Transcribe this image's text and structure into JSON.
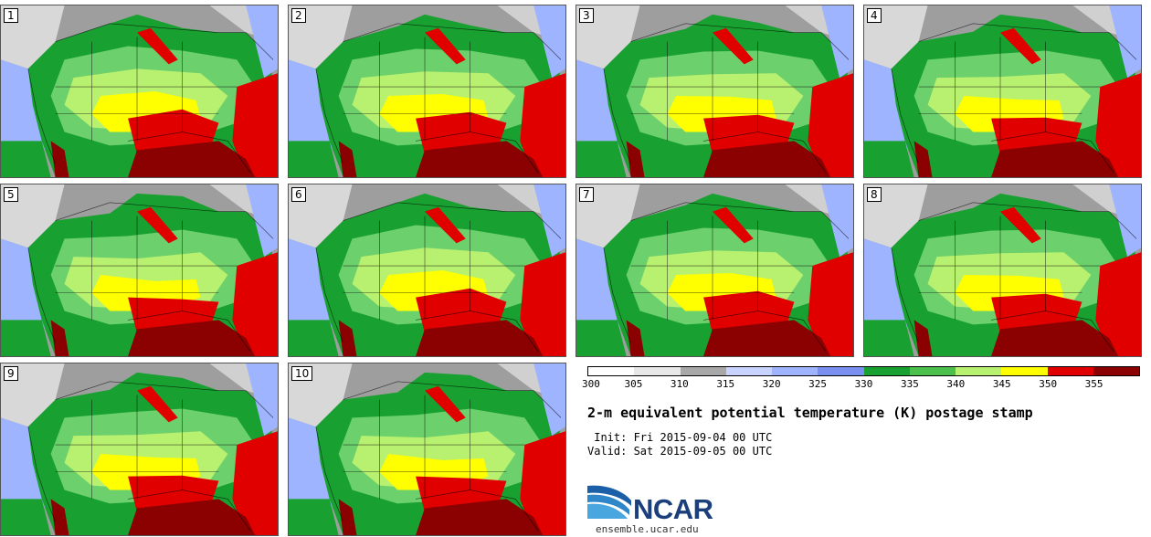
{
  "panels": [
    {
      "label": "1"
    },
    {
      "label": "2"
    },
    {
      "label": "3"
    },
    {
      "label": "4"
    },
    {
      "label": "5"
    },
    {
      "label": "6"
    },
    {
      "label": "7"
    },
    {
      "label": "8"
    },
    {
      "label": "9"
    },
    {
      "label": "10"
    }
  ],
  "colorbar": {
    "ticks": [
      "300",
      "305",
      "310",
      "315",
      "320",
      "325",
      "330",
      "335",
      "340",
      "345",
      "350",
      "355"
    ],
    "colors": [
      "#ffffff",
      "#e8e8e8",
      "#a8a8a8",
      "#c8d4ff",
      "#9fb4ff",
      "#7a90f0",
      "#18a030",
      "#4cc04c",
      "#b8f070",
      "#ffff00",
      "#e00000",
      "#8b0000"
    ]
  },
  "title": "2-m equivalent potential temperature (K) postage stamp",
  "init": " Init: Fri 2015-09-04 00 UTC",
  "valid": "Valid: Sat 2015-09-05 00 UTC",
  "logo": {
    "text": "NCAR",
    "site": "ensemble.ucar.edu"
  },
  "colors": {
    "ocean": "#9fb4ff",
    "land_cool": "#18a030",
    "land_mid": "#b8f070",
    "warm": "#ffff00",
    "hot": "#e00000",
    "hottest": "#8b0000"
  }
}
